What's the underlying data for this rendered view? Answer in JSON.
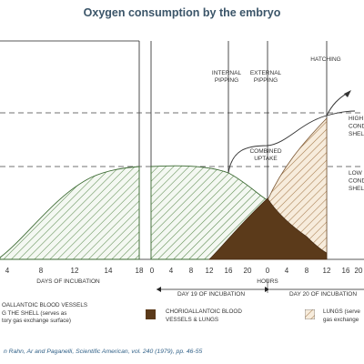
{
  "title": "Oxygen consumption by the embryo",
  "source": "n Rahn, Ar and Paganelli, Scientific American, vol. 240 (1979), pp. 46-55",
  "colors": {
    "brown": "#5b3a1a",
    "green_hatch": "#5b8a4e",
    "lungs_hatch": "#a67c4e",
    "title": "#3b5569",
    "source": "#2f5f86"
  },
  "chart_data": {
    "type": "area",
    "title": "Oxygen consumption by the embryo",
    "x_ticks_days": [
      "4",
      "8",
      "12",
      "14",
      "18"
    ],
    "x_ticks_days19": [
      "0",
      "4",
      "8",
      "12",
      "16",
      "20"
    ],
    "x_ticks_hours_a": [
      "12",
      "16",
      "20",
      "0",
      "4",
      "8",
      "12"
    ],
    "x_ticks_hours_b": [
      "16",
      "20"
    ],
    "axis_labels": {
      "days": "DAYS OF INCUBATION",
      "hours": "HOURS",
      "day19": "DAY 19 OF INCUBATION",
      "day20": "DAY 20 OF INCUBATION"
    },
    "annotations": {
      "internal_pipping": [
        "INTERNAL",
        "PIPPING"
      ],
      "external_pipping": [
        "EXTERNAL",
        "PIPPING"
      ],
      "hatching": "HATCHING",
      "combined_uptake": [
        "COMBINED",
        "UPTAKE"
      ],
      "high_conductance": [
        "HIGH",
        "CONDUCTA",
        "SHELL"
      ],
      "low_conductance": [
        "LOW",
        "CONDUCTA",
        "SHELL"
      ]
    },
    "series": [
      {
        "name": "CHORIOALLANTOIC BLOOD VESSELS THE SHELL",
        "x_days": [
          2,
          4,
          8,
          12,
          14,
          18
        ],
        "y": [
          0.05,
          0.2,
          0.55,
          0.8,
          0.85,
          0.88
        ]
      },
      {
        "name": "CHORIOALLANTOIC BLOOD VESSELS & LUNGS",
        "x_hours": [
          12,
          16,
          20,
          0,
          4,
          8,
          12
        ],
        "y": [
          0,
          0.12,
          0.25,
          0.47,
          0.3,
          0.15,
          0.05
        ]
      },
      {
        "name": "LUNGS",
        "x_hours": [
          12,
          16,
          20,
          0,
          4,
          8,
          12
        ],
        "y": [
          0,
          0.05,
          0.1,
          0.25,
          0.6,
          0.85,
          1.0
        ]
      }
    ],
    "legend": [
      {
        "key": "shell",
        "text": [
          "OALLANTOIC BLOOD VESSELS",
          "G THE SHELL (serves as",
          "tory gas exchange surface)"
        ]
      },
      {
        "key": "both",
        "text": [
          "CHORIOALLANTOIC BLOOD",
          "VESSELS & LUNGS"
        ]
      },
      {
        "key": "lungs",
        "text": [
          "LUNGS (serve",
          "gas exchange"
        ]
      }
    ]
  }
}
